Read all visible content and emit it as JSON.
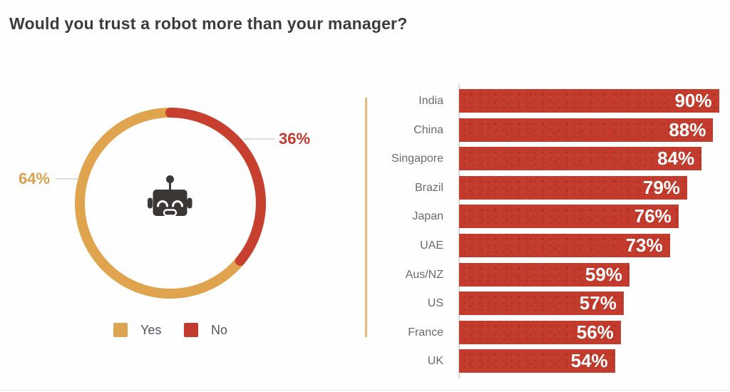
{
  "title": "Would you trust a robot more than your manager?",
  "donut": {
    "callout_yes": "64%",
    "callout_no": "36%",
    "center_icon": "robot"
  },
  "legend": {
    "items": [
      {
        "label": "Yes",
        "color": "#dfa44f"
      },
      {
        "label": "No",
        "color": "#c23b2c"
      }
    ]
  },
  "chart_data": [
    {
      "type": "pie",
      "subtype": "donut",
      "title": "Would you trust a robot more than your manager?",
      "labels": [
        "Yes",
        "No"
      ],
      "values": [
        64,
        36
      ],
      "colors": [
        "#e0a44e",
        "#c7402f"
      ],
      "data_labels": [
        "64%",
        "36%"
      ],
      "legend_position": "bottom-left",
      "center_icon": "robot",
      "annotation_colors": [
        "#d9a14e",
        "#c5392c"
      ]
    },
    {
      "type": "bar",
      "orientation": "horizontal",
      "categories": [
        "India",
        "China",
        "Singapore",
        "Brazil",
        "Japan",
        "UAE",
        "Aus/NZ",
        "US",
        "France",
        "UK"
      ],
      "values": [
        90,
        88,
        84,
        79,
        76,
        73,
        59,
        57,
        56,
        54
      ],
      "value_labels": [
        "90%",
        "88%",
        "84%",
        "79%",
        "76%",
        "73%",
        "59%",
        "57%",
        "56%",
        "54%"
      ],
      "bar_color": "#c23b2c",
      "value_label_color": "#ffffff",
      "category_label_color": "#6b6b6b",
      "xlim": [
        0,
        100
      ],
      "grid": false,
      "legend_position": "none"
    }
  ]
}
